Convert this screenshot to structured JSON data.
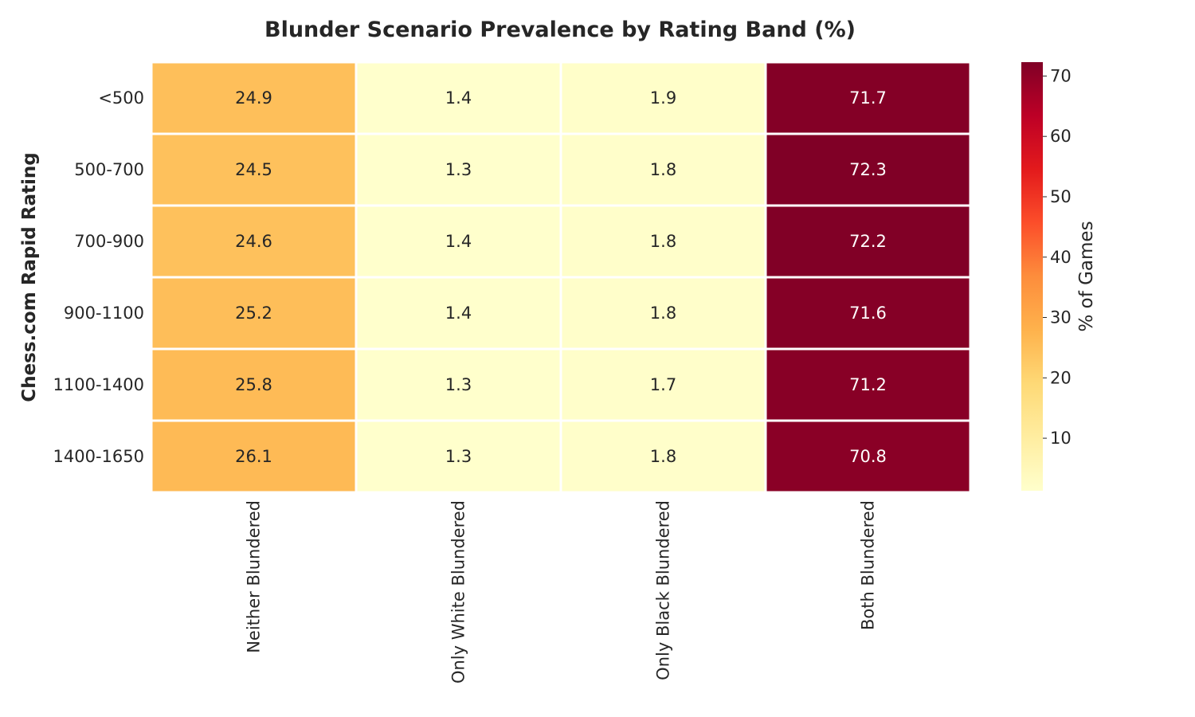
{
  "chart_data": {
    "type": "heatmap",
    "title": "Blunder Scenario Prevalence by Rating Band (%)",
    "ylabel": "Chess.com Rapid Rating",
    "xlabel": "",
    "rows": [
      "<500",
      "500-700",
      "700-900",
      "900-1100",
      "1100-1400",
      "1400-1650"
    ],
    "columns": [
      "Neither Blundered",
      "Only White Blundered",
      "Only Black Blundered",
      "Both Blundered"
    ],
    "values": [
      [
        24.9,
        1.4,
        1.9,
        71.7
      ],
      [
        24.5,
        1.3,
        1.8,
        72.3
      ],
      [
        24.6,
        1.4,
        1.8,
        72.2
      ],
      [
        25.2,
        1.4,
        1.8,
        71.6
      ],
      [
        25.8,
        1.3,
        1.7,
        71.2
      ],
      [
        26.1,
        1.3,
        1.8,
        70.8
      ]
    ],
    "colormap": "YlOrRd",
    "colorbar": {
      "label": "% of Games",
      "ticks": [
        10,
        20,
        30,
        40,
        50,
        60,
        70
      ],
      "range": [
        1.3,
        72.3
      ]
    },
    "cell_border_color": "#ffffff",
    "grid": false
  }
}
